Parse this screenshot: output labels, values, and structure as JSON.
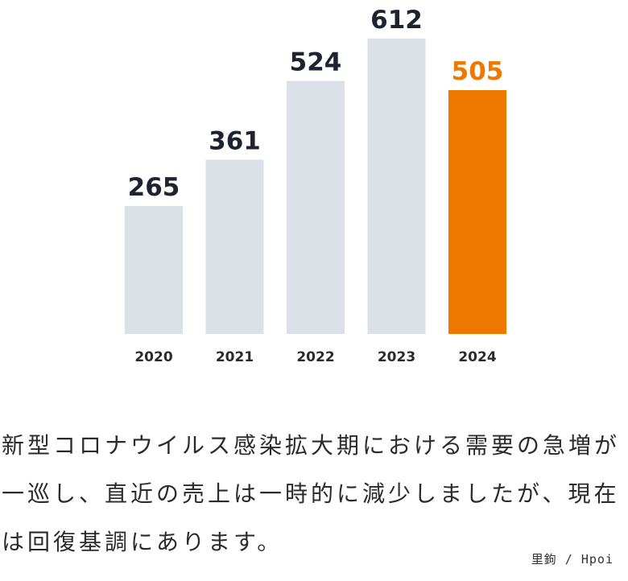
{
  "chart_data": {
    "type": "bar",
    "categories": [
      "2020",
      "2021",
      "2022",
      "2023",
      "2024"
    ],
    "values": [
      265,
      361,
      524,
      612,
      505
    ],
    "value_labels": [
      "265",
      "361",
      "524",
      "612",
      "505"
    ],
    "highlight_index": 4,
    "colors": {
      "bar": "#dce1e8",
      "highlight_bar": "#ee7800",
      "label": "#1f2330",
      "highlight_label": "#ee7800"
    },
    "grid": false,
    "legend": "none"
  },
  "caption": "新型コロナウイルス感染拡大期における需要の急増が一巡し、直近の売上は一時的に減少しましたが、現在は回復基調にあります。",
  "watermark": "里鉤 / Hpoi"
}
